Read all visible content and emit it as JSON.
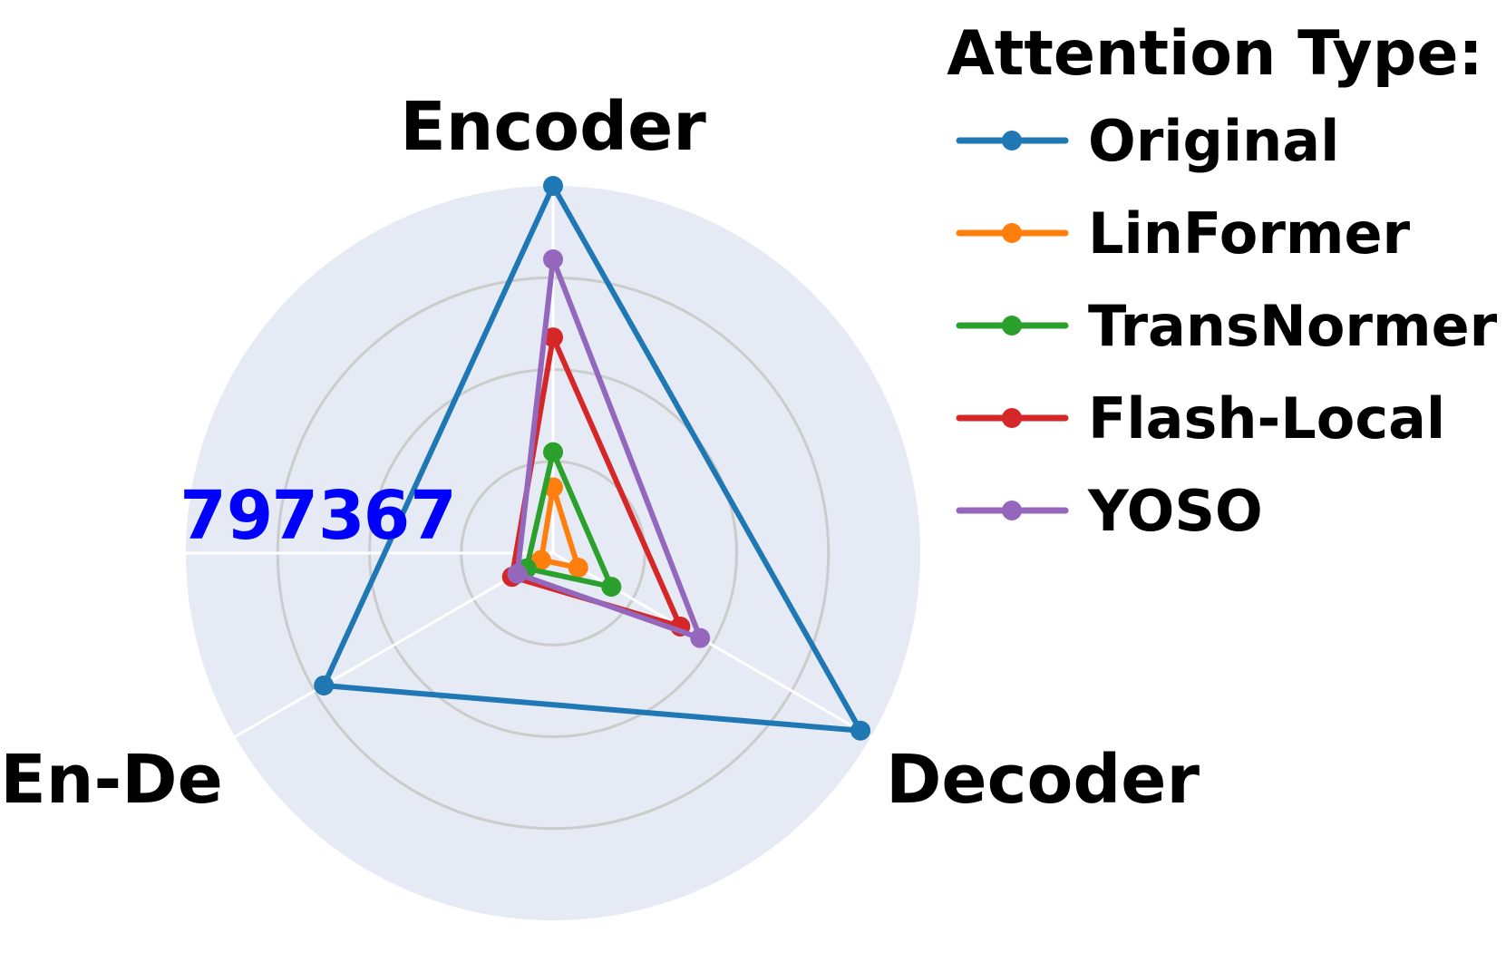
{
  "chart_data": {
    "type": "radar",
    "axes": [
      "Encoder",
      "Decoder",
      "En-De"
    ],
    "radial_ticks": [
      "79",
      "73",
      "67"
    ],
    "radial_tick_values": [
      79,
      73,
      67
    ],
    "radial_range": [
      61,
      85
    ],
    "grid": true,
    "legend_title": "Attention Type:",
    "legend_placement": "right",
    "series": [
      {
        "name": "Original",
        "color": "#1f77b4",
        "values": [
          85,
          84.2,
          78.3
        ]
      },
      {
        "name": "LinFormer",
        "color": "#ff7f0e",
        "values": [
          65.3,
          62.9,
          61.9
        ]
      },
      {
        "name": "TransNormer",
        "color": "#2ca02c",
        "values": [
          67.6,
          65.4,
          63
        ]
      },
      {
        "name": "Flash-Local",
        "color": "#d62728",
        "values": [
          75.1,
          70.6,
          64.1
        ]
      },
      {
        "name": "YOSO",
        "color": "#9467bd",
        "values": [
          80.2,
          72.1,
          63.7
        ]
      }
    ]
  }
}
